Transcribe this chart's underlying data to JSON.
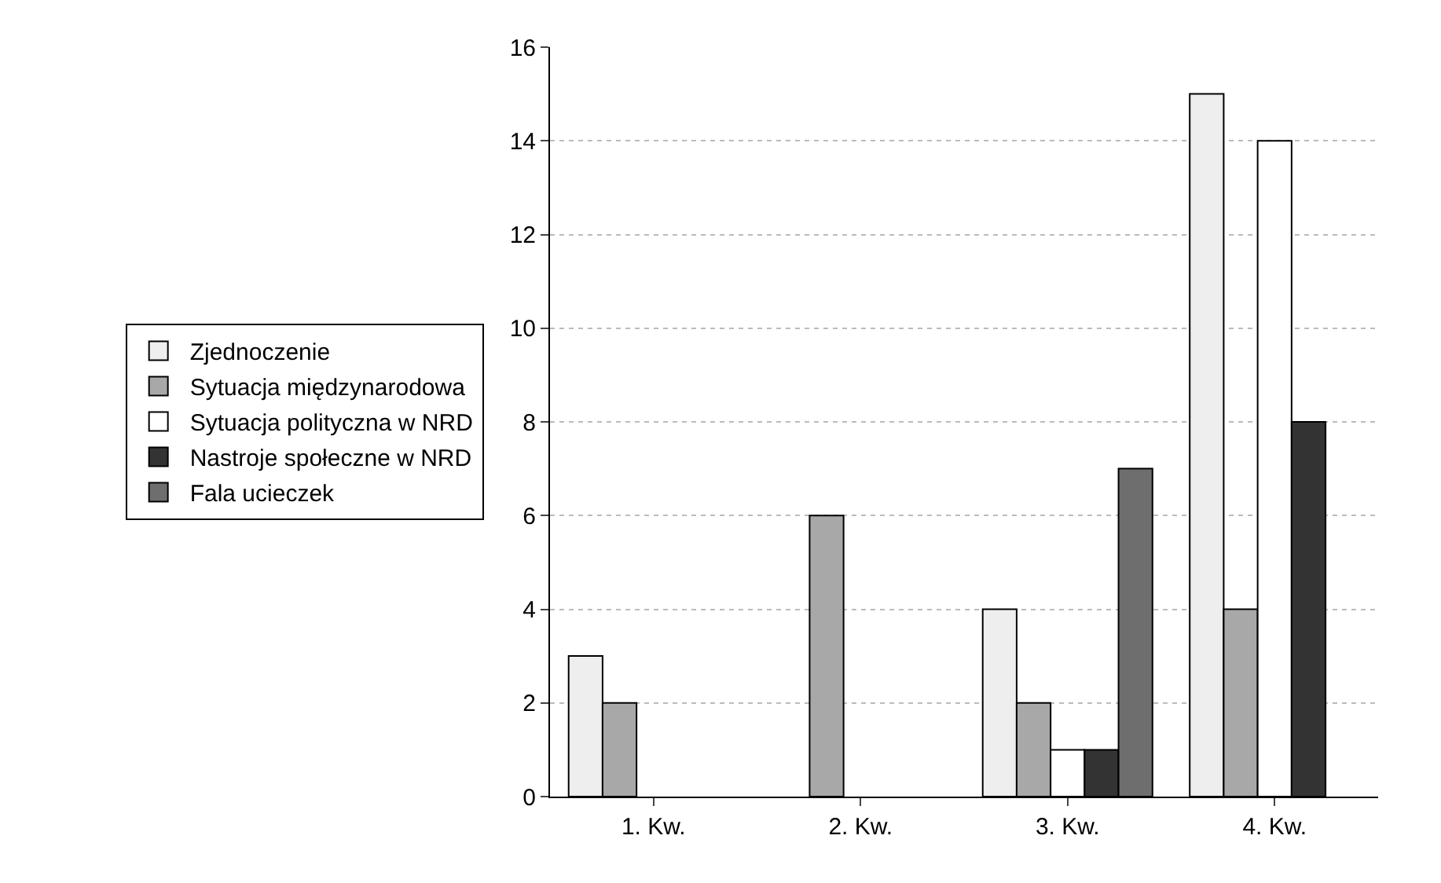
{
  "chart_data": {
    "type": "bar",
    "categories": [
      "1. Kw.",
      "2. Kw.",
      "3. Kw.",
      "4. Kw."
    ],
    "series": [
      {
        "name": "Zjednoczenie",
        "color": "#eeeeee",
        "values": [
          3,
          null,
          4,
          15
        ]
      },
      {
        "name": "Sytuacja międzynarodowa",
        "color": "#a8a8a8",
        "values": [
          2,
          6,
          2,
          4
        ]
      },
      {
        "name": "Sytuacja polityczna w NRD",
        "color": "#ffffff",
        "values": [
          null,
          null,
          1,
          14
        ]
      },
      {
        "name": "Nastroje społeczne w NRD",
        "color": "#333333",
        "values": [
          null,
          null,
          1,
          8
        ]
      },
      {
        "name": "Fala ucieczek",
        "color": "#6e6e6e",
        "values": [
          null,
          null,
          7,
          null
        ]
      }
    ],
    "ylim": [
      0,
      16
    ],
    "yticks": [
      0,
      2,
      4,
      6,
      8,
      10,
      12,
      14,
      16
    ],
    "grid": "y",
    "legend": "left"
  }
}
